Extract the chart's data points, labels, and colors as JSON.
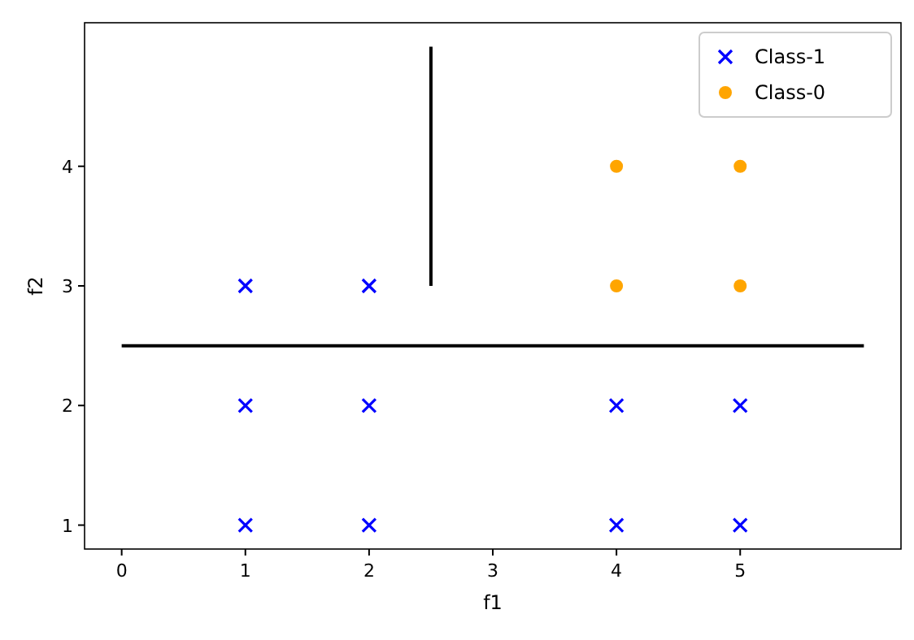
{
  "chart_data": {
    "type": "scatter",
    "xlabel": "f1",
    "ylabel": "f2",
    "xlim": [
      -0.3,
      6.3
    ],
    "ylim": [
      0.8,
      5.2
    ],
    "xticks": [
      0,
      1,
      2,
      3,
      4,
      5
    ],
    "yticks": [
      1,
      2,
      3,
      4
    ],
    "grid": false,
    "legend": "top right",
    "series": [
      {
        "name": "Class-1",
        "color": "#0000ff",
        "marker": "cross",
        "x": [
          1,
          1,
          1,
          2,
          2,
          2,
          4,
          4,
          5,
          5
        ],
        "values": [
          1,
          2,
          3,
          1,
          2,
          3,
          1,
          2,
          1,
          2
        ]
      },
      {
        "name": "Class-0",
        "color": "#ffa500",
        "marker": "circle",
        "x": [
          4,
          4,
          5,
          5
        ],
        "values": [
          3,
          4,
          3,
          4
        ]
      },
      {
        "type": "line",
        "color": "#000000",
        "marker": "none",
        "x": [
          2.5,
          2.5
        ],
        "values": [
          3,
          5
        ]
      },
      {
        "type": "line",
        "color": "#000000",
        "marker": "none",
        "x": [
          0,
          6
        ],
        "values": [
          2.5,
          2.5
        ]
      }
    ]
  }
}
